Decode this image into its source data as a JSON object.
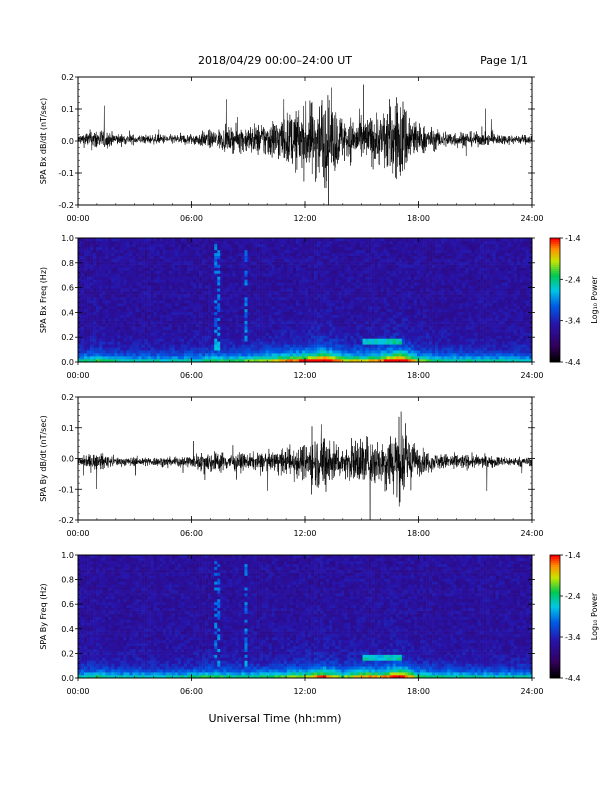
{
  "header": {
    "title": "2018/04/29  00:00–24:00 UT",
    "page": "Page 1/1"
  },
  "footer": {
    "xlabel": "Universal Time (hh:mm)"
  },
  "chart_data": [
    {
      "type": "line",
      "ylabel": "SPA Bx dB/dt (nT/sec)",
      "ylim": [
        -0.2,
        0.2
      ],
      "yticks": [
        "0.2",
        "0.1",
        "0.0",
        "-0.1",
        "-0.2"
      ],
      "xticks": [
        "00:00",
        "06:00",
        "12:00",
        "18:00",
        "24:00"
      ],
      "xlim_hours": [
        0,
        24
      ],
      "envelope": {
        "hours": [
          0,
          1,
          2,
          3,
          4,
          5,
          6,
          7,
          8,
          9,
          10,
          11,
          12,
          13,
          14,
          15,
          16,
          17,
          18,
          19,
          20,
          21,
          22,
          23,
          24
        ],
        "amplitude": [
          0.02,
          0.05,
          0.025,
          0.02,
          0.02,
          0.02,
          0.025,
          0.04,
          0.05,
          0.06,
          0.08,
          0.11,
          0.14,
          0.2,
          0.1,
          0.09,
          0.12,
          0.2,
          0.07,
          0.04,
          0.035,
          0.03,
          0.025,
          0.02,
          0.02
        ]
      }
    },
    {
      "type": "heatmap",
      "ylabel": "SPA Bx Freq (Hz)",
      "ylim": [
        0,
        1.0
      ],
      "yticks": [
        "1.0",
        "0.8",
        "0.6",
        "0.4",
        "0.2",
        "0.0"
      ],
      "xticks": [
        "00:00",
        "06:00",
        "12:00",
        "18:00",
        "24:00"
      ],
      "colorbar": {
        "label": "Log₁₀ Power",
        "ticks": [
          "-1.4",
          "-2.4",
          "-3.4",
          "-4.4"
        ],
        "range": [
          -4.4,
          -1.4
        ]
      }
    },
    {
      "type": "line",
      "ylabel": "SPA By dB/dt (nT/sec)",
      "ylim": [
        -0.2,
        0.2
      ],
      "yticks": [
        "0.2",
        "0.1",
        "0.0",
        "-0.1",
        "-0.2"
      ],
      "xticks": [
        "00:00",
        "06:00",
        "12:00",
        "18:00",
        "24:00"
      ],
      "xlim_hours": [
        0,
        24
      ],
      "envelope": {
        "hours": [
          0,
          1,
          2,
          3,
          4,
          5,
          6,
          7,
          8,
          9,
          10,
          11,
          12,
          13,
          14,
          15,
          16,
          17,
          18,
          19,
          20,
          21,
          22,
          23,
          24
        ],
        "amplitude": [
          0.02,
          0.04,
          0.02,
          0.02,
          0.02,
          0.02,
          0.03,
          0.05,
          0.04,
          0.035,
          0.04,
          0.06,
          0.08,
          0.14,
          0.06,
          0.12,
          0.1,
          0.18,
          0.06,
          0.035,
          0.035,
          0.03,
          0.025,
          0.02,
          0.02
        ]
      }
    },
    {
      "type": "heatmap",
      "ylabel": "SPA By Freq (Hz)",
      "ylim": [
        0,
        1.0
      ],
      "yticks": [
        "1.0",
        "0.8",
        "0.6",
        "0.4",
        "0.2",
        "0.0"
      ],
      "xticks": [
        "00:00",
        "06:00",
        "12:00",
        "18:00",
        "24:00"
      ],
      "colorbar": {
        "label": "Log₁₀ Power",
        "ticks": [
          "-1.4",
          "-2.4",
          "-3.4",
          "-4.4"
        ],
        "range": [
          -4.4,
          -1.4
        ]
      }
    }
  ]
}
